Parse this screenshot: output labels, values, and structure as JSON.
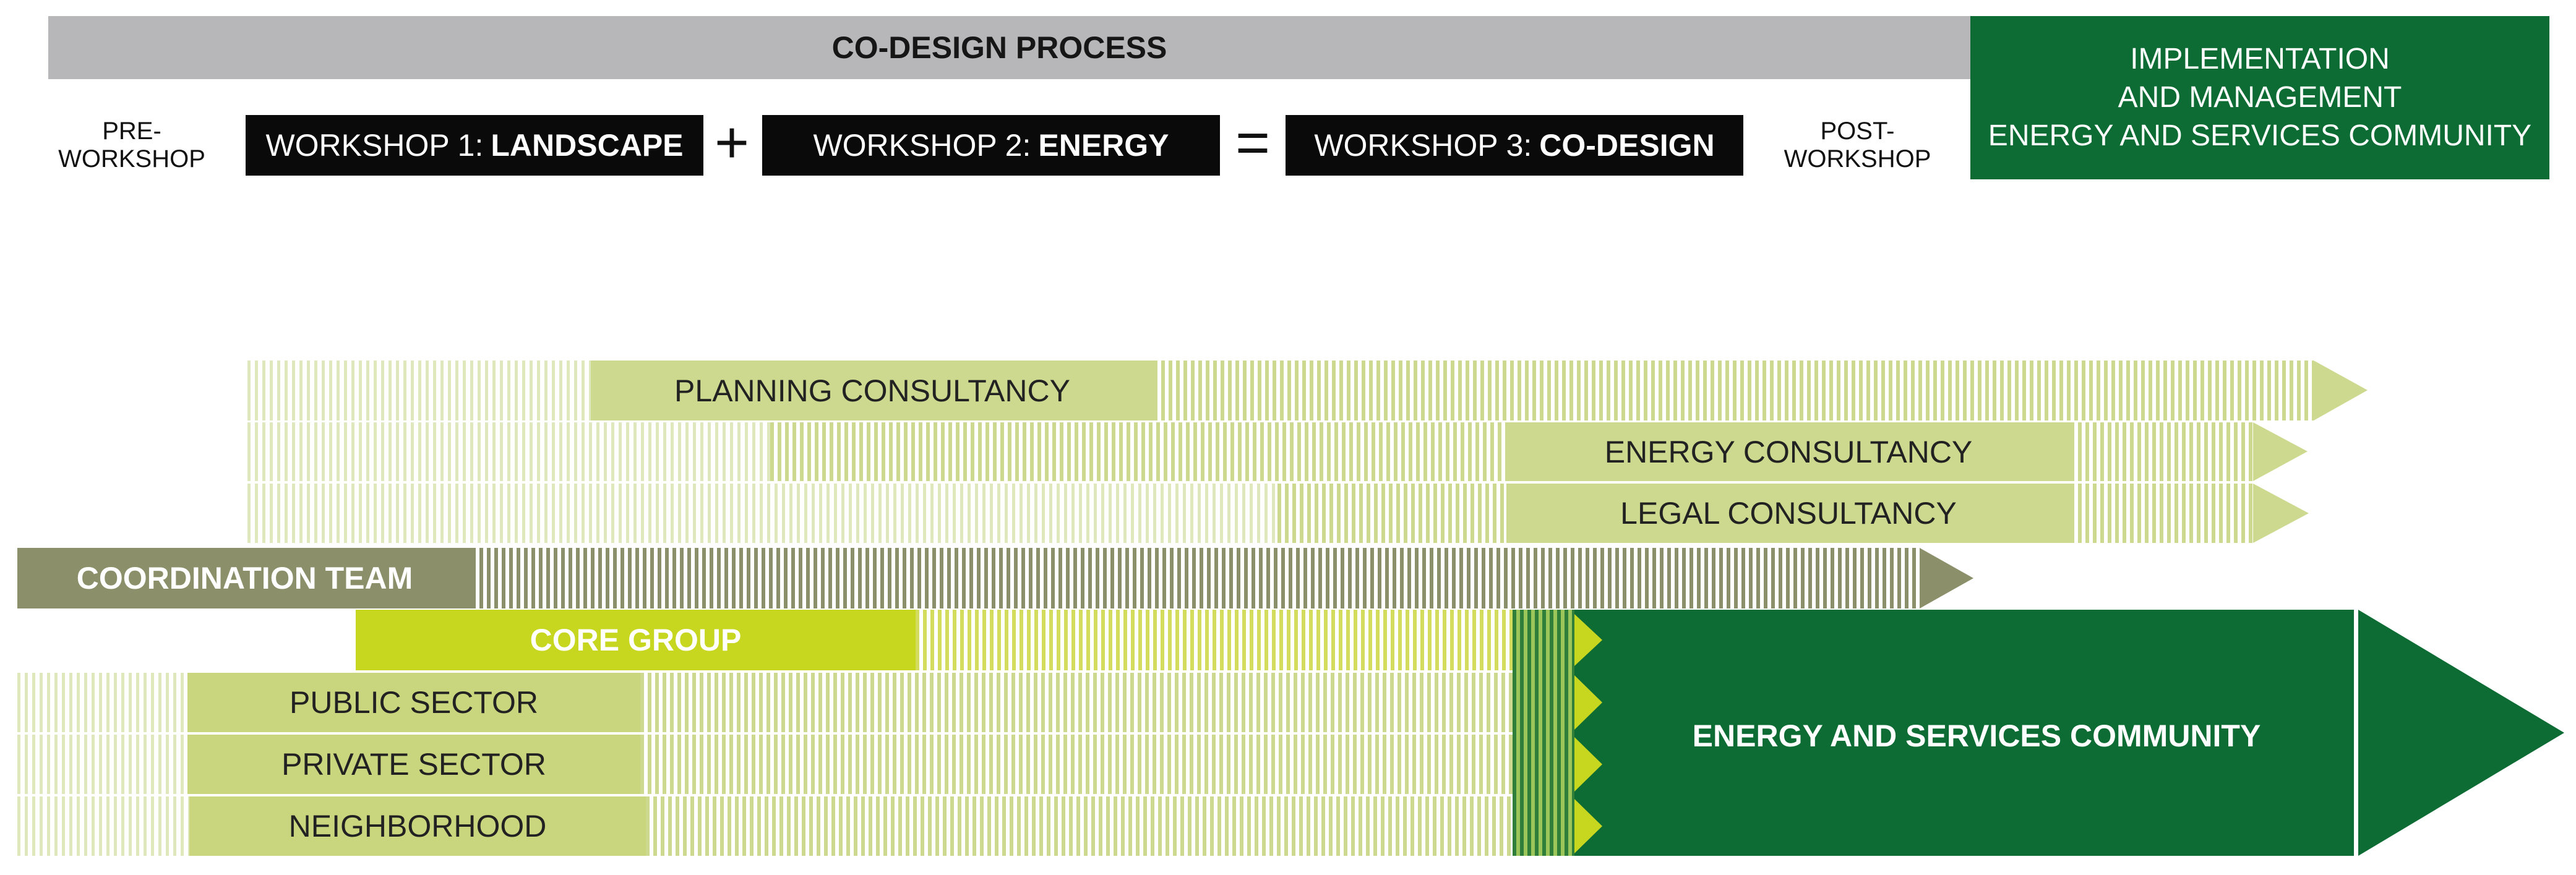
{
  "header": {
    "process_label": "CO-DESIGN PROCESS",
    "implementation": [
      "IMPLEMENTATION",
      "AND MANAGEMENT",
      "ENERGY AND SERVICES COMMUNITY"
    ],
    "pre_workshop": "PRE-WORKSHOP",
    "post_workshop": "POST-WORKSHOP",
    "workshop1": {
      "prefix": "WORKSHOP 1:",
      "name": "LANDSCAPE"
    },
    "workshop2": {
      "prefix": "WORKSHOP 2:",
      "name": "ENERGY"
    },
    "workshop3": {
      "prefix": "WORKSHOP 3:",
      "name": "CO-DESIGN"
    },
    "plus": "+",
    "equals": "="
  },
  "rows": {
    "planning": "PLANNING CONSULTANCY",
    "energy": "ENERGY CONSULTANCY",
    "legal": "LEGAL CONSULTANCY",
    "coordination": "COORDINATION TEAM",
    "core": "CORE GROUP",
    "public": "PUBLIC SECTOR",
    "private": "PRIVATE SECTOR",
    "neighborhood": "NEIGHBORHOOD"
  },
  "community_label": "ENERGY AND SERVICES COMMUNITY",
  "colors": {
    "dark_green": "#0d6b34",
    "consultancy_green": "#cdd98f",
    "coordination_olive": "#8c906a",
    "core_lime": "#c7d61e",
    "header_grey": "#b7b7b9"
  }
}
